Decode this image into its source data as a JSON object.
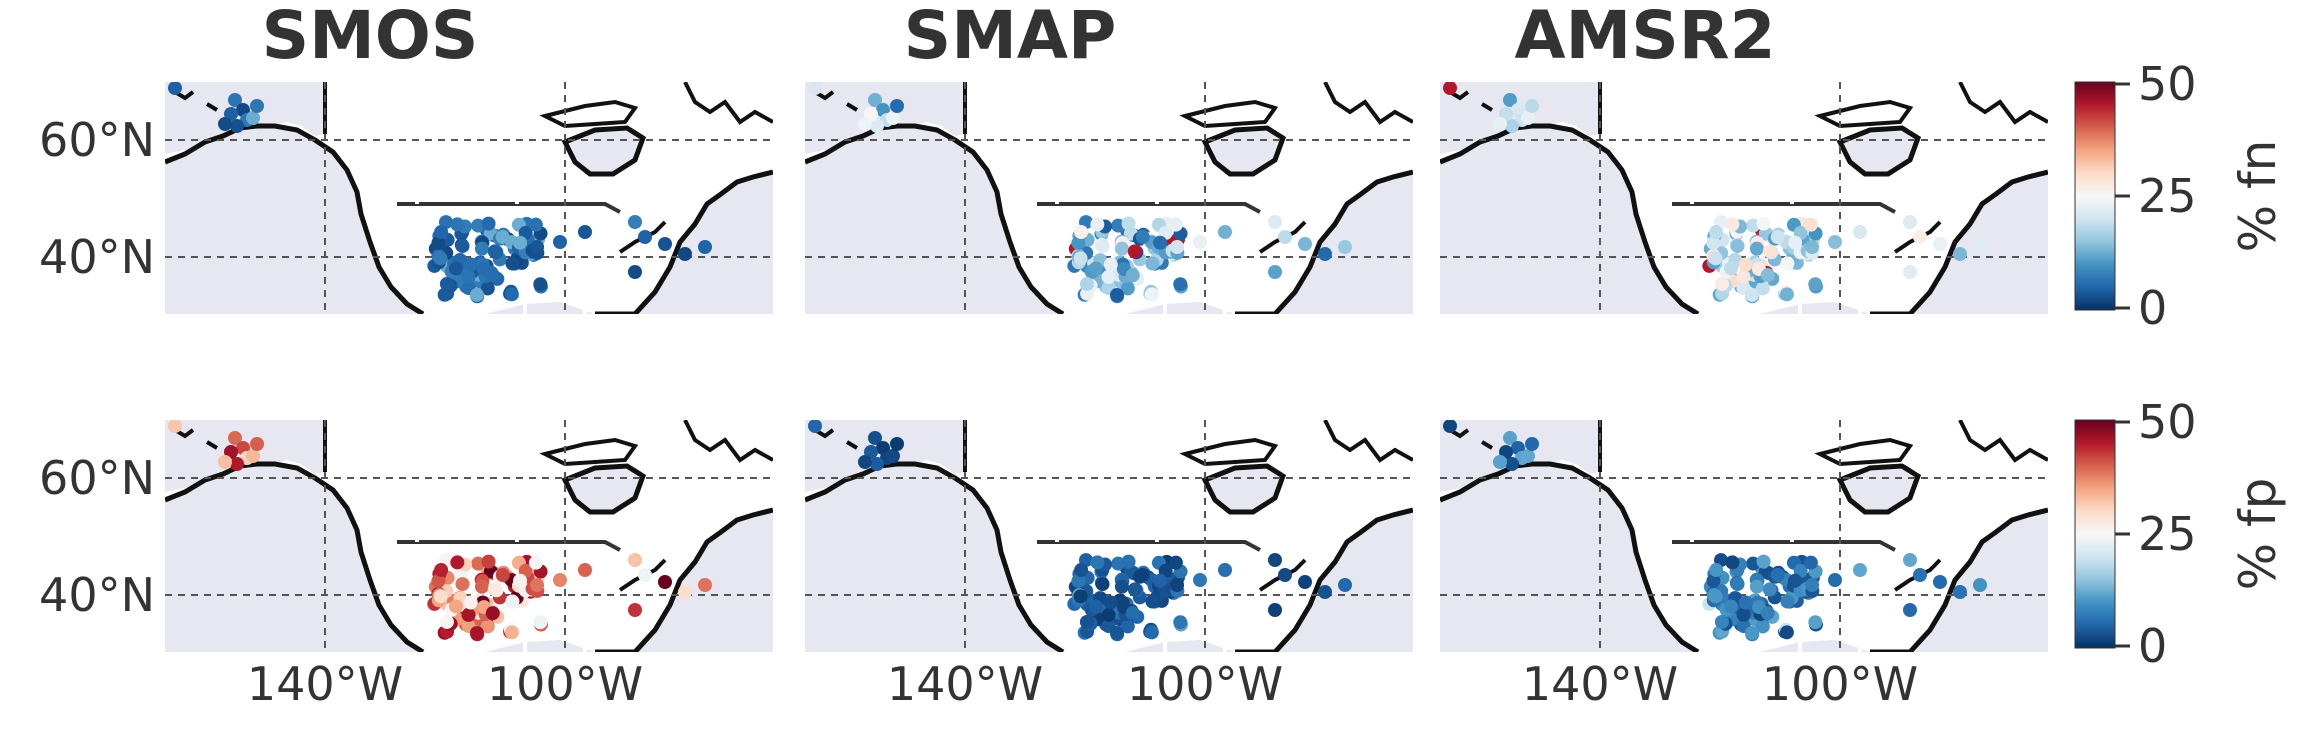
{
  "columns": [
    "SMOS",
    "SMAP",
    "AMSR2"
  ],
  "lat_ticks": [
    "60°N",
    "40°N"
  ],
  "lon_ticks": [
    "140°W",
    "100°W"
  ],
  "colorbars": [
    {
      "label": "% fn",
      "ticks": [
        "50",
        "25",
        "0"
      ]
    },
    {
      "label": "% fp",
      "ticks": [
        "50",
        "25",
        "0"
      ]
    }
  ],
  "colormap": [
    "#053061",
    "#2166ac",
    "#4393c3",
    "#92c5de",
    "#d1e5f0",
    "#f7f7f7",
    "#fddbc7",
    "#f4a582",
    "#d6604d",
    "#b2182b",
    "#67001f"
  ],
  "map_colors": {
    "ocean": "#e6e7f0",
    "land": "#ffffff",
    "coast": "#111111",
    "states": "#ffffff"
  },
  "value_range": [
    0,
    50
  ],
  "panels": [
    {
      "row": "fn",
      "column": "SMOS",
      "mean": 5,
      "spread": 3
    },
    {
      "row": "fn",
      "column": "SMAP",
      "mean": 15,
      "spread": 12
    },
    {
      "row": "fn",
      "column": "AMSR2",
      "mean": 20,
      "spread": 10
    },
    {
      "row": "fp",
      "column": "SMOS",
      "mean": 35,
      "spread": 12
    },
    {
      "row": "fp",
      "column": "SMAP",
      "mean": 4,
      "spread": 3
    },
    {
      "row": "fp",
      "column": "AMSR2",
      "mean": 7,
      "spread": 5
    }
  ]
}
